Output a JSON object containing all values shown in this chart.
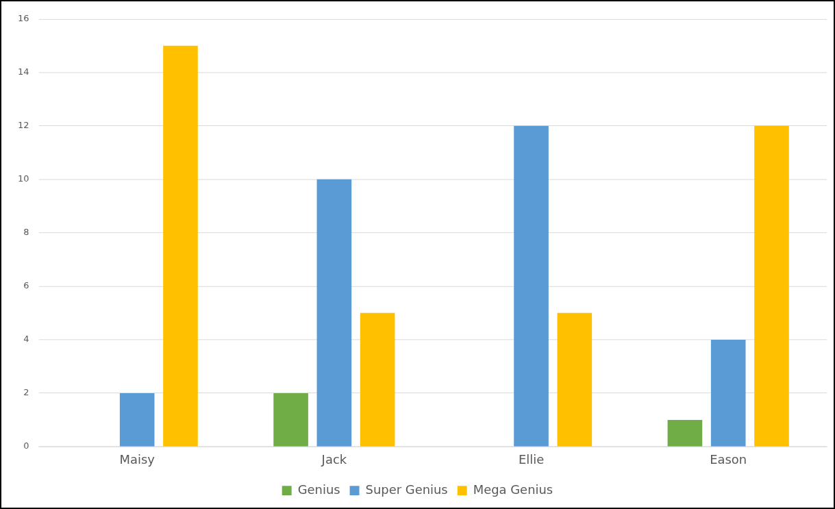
{
  "chart_data": {
    "type": "bar",
    "categories": [
      "Maisy",
      "Jack",
      "Ellie",
      "Eason"
    ],
    "series": [
      {
        "name": "Genius",
        "color": "#70ad47",
        "values": [
          0,
          2,
          0,
          1
        ]
      },
      {
        "name": "Super Genius",
        "color": "#5b9bd5",
        "values": [
          2,
          10,
          12,
          4
        ]
      },
      {
        "name": "Mega Genius",
        "color": "#ffc000",
        "values": [
          15,
          5,
          5,
          12
        ]
      }
    ],
    "ylim": [
      0,
      16
    ],
    "yticks": [
      0,
      2,
      4,
      6,
      8,
      10,
      12,
      14,
      16
    ],
    "grid": "y",
    "legend": "bottom"
  }
}
